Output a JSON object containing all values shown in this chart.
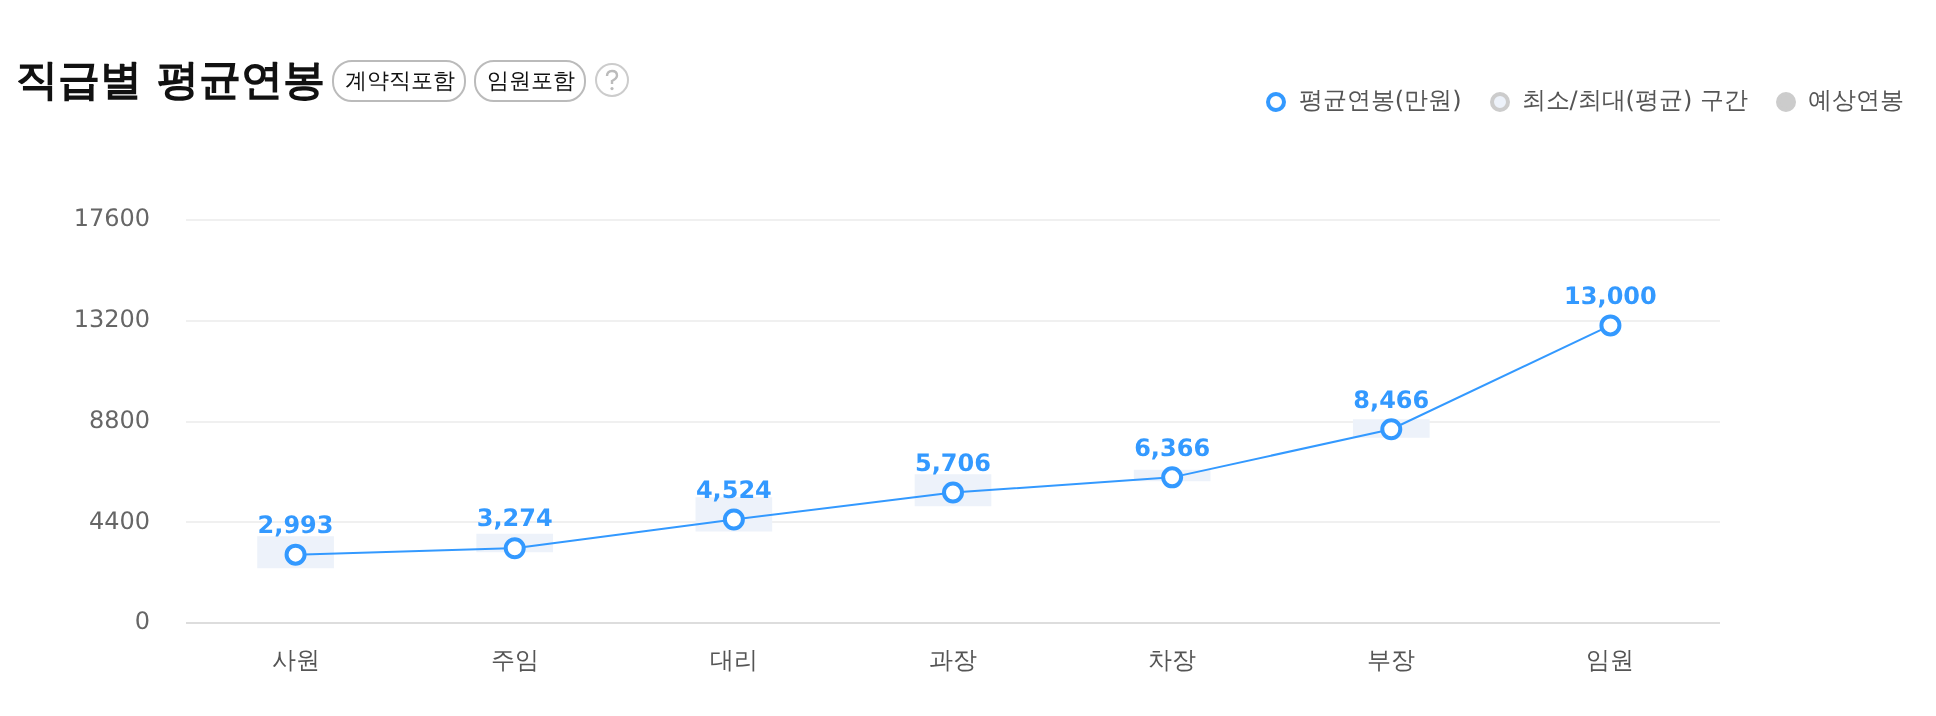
{
  "chart_data": {
    "type": "line",
    "title": "직급별 평균연봉",
    "annotations": [
      "계약직포함",
      "임원포함"
    ],
    "categories": [
      "사원",
      "주임",
      "대리",
      "과장",
      "차장",
      "부장",
      "임원"
    ],
    "series": [
      {
        "name": "평균연봉(만원)",
        "color": "#3399ff",
        "values": [
          2993,
          3274,
          4524,
          5706,
          6366,
          8466,
          13000
        ],
        "value_labels": [
          "2,993",
          "3,274",
          "4,524",
          "5,706",
          "6,366",
          "8,466",
          "13,000"
        ]
      },
      {
        "name": "최소/최대(평균) 구간",
        "type": "bar",
        "color": "#edf2fa",
        "base": [
          2400,
          3100,
          4000,
          5100,
          6200,
          8100,
          null
        ],
        "values": [
          1400,
          800,
          1500,
          1400,
          500,
          800,
          null
        ]
      },
      {
        "name": "예상연봉",
        "color": "#cccccc",
        "values": [
          null,
          null,
          null,
          null,
          null,
          null,
          null
        ]
      }
    ],
    "ylim": [
      0,
      17600
    ],
    "yticks": [
      0,
      4400,
      8800,
      13200,
      17600
    ],
    "grid": "y",
    "legend": "top right",
    "marker": "circle",
    "line_style": "solid"
  }
}
